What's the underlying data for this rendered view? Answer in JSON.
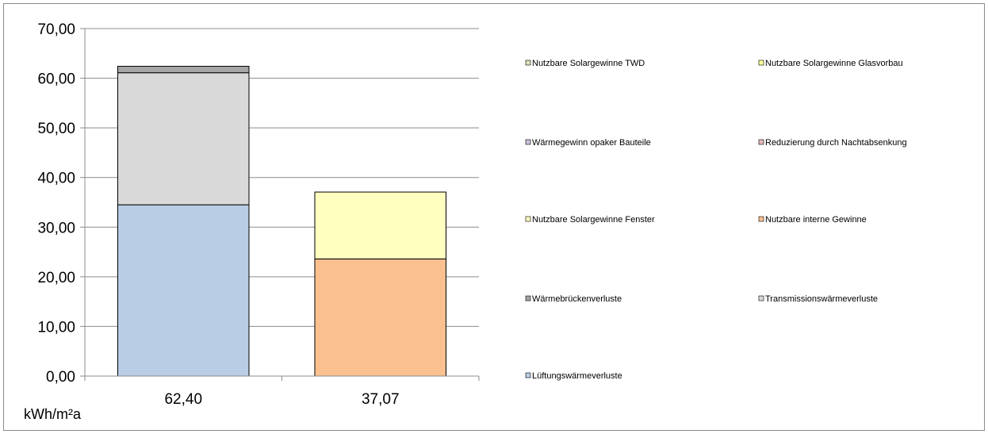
{
  "chart_data": {
    "type": "bar",
    "stacked": true,
    "categories": [
      "62,40",
      "37,07"
    ],
    "ylim": [
      0,
      70
    ],
    "ytick_step": 10,
    "ytick_labels": [
      "0,00",
      "10,00",
      "20,00",
      "30,00",
      "40,00",
      "50,00",
      "60,00",
      "70,00"
    ],
    "ylabel": "kWh/m²a",
    "grid": true,
    "legend_position": "right",
    "series": [
      {
        "name": "Lüftungswärmeverluste",
        "color": "#b9cde5",
        "values": [
          34.5,
          0
        ]
      },
      {
        "name": "Transmissionswärmeverluste",
        "color": "#d9d9d9",
        "values": [
          26.6,
          0
        ]
      },
      {
        "name": "Wärmebrückenverluste",
        "color": "#a6a6a6",
        "values": [
          1.3,
          0
        ]
      },
      {
        "name": "Nutzbare interne Gewinne",
        "color": "#fac090",
        "values": [
          0,
          23.6
        ]
      },
      {
        "name": "Nutzbare Solargewinne Fenster",
        "color": "#ffffc0",
        "values": [
          0,
          13.47
        ]
      },
      {
        "name": "Reduzierung durch Nachtabsenkung",
        "color": "#e6b9b8",
        "values": [
          0,
          0
        ]
      },
      {
        "name": "Wärmegewinn opaker Bauteile",
        "color": "#ccc0da",
        "values": [
          0,
          0
        ]
      },
      {
        "name": "Nutzbare Solargewinne Glasvorbau",
        "color": "#ffff99",
        "values": [
          0,
          0
        ]
      },
      {
        "name": "Nutzbare Solargewinne TWD",
        "color": "#d7e4bd",
        "values": [
          0,
          0
        ]
      }
    ],
    "legend": [
      {
        "name": "Nutzbare Solargewinne TWD",
        "color": "#d7e4bd"
      },
      {
        "name": "Nutzbare Solargewinne Glasvorbau",
        "color": "#ffff99"
      },
      {
        "name": "Wärmegewinn opaker Bauteile",
        "color": "#ccc0da"
      },
      {
        "name": "Reduzierung durch Nachtabsenkung",
        "color": "#e6b9b8"
      },
      {
        "name": "Nutzbare Solargewinne Fenster",
        "color": "#ffffc0"
      },
      {
        "name": "Nutzbare interne Gewinne",
        "color": "#fac090"
      },
      {
        "name": "Wärmebrückenverluste",
        "color": "#a6a6a6"
      },
      {
        "name": "Transmissionswärmeverluste",
        "color": "#d9d9d9"
      },
      {
        "name": "Lüftungswärmeverluste",
        "color": "#b9cde5"
      }
    ]
  }
}
